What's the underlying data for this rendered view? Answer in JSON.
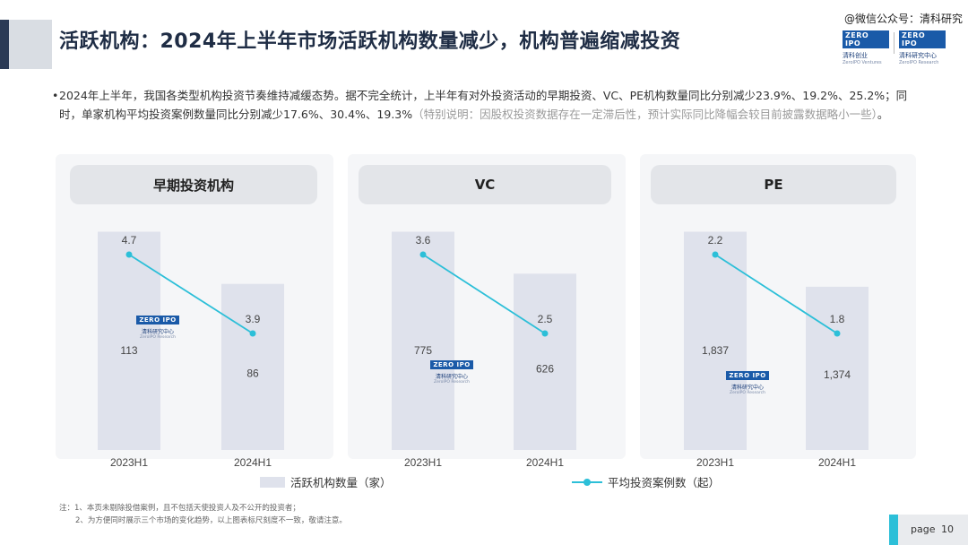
{
  "header": {
    "title": "活跃机构：2024年上半年市场活跃机构数量减少，机构普遍缩减投资",
    "source": "@微信公众号：清科研究",
    "logos": [
      {
        "tag": "ZERO IPO",
        "sub": "清科创业",
        "en": "ZeroIPO Ventures"
      },
      {
        "tag": "ZERO IPO",
        "sub": "清科研究中心",
        "en": "ZeroIPO Research"
      }
    ]
  },
  "summary": {
    "bullet": "•",
    "text": "2024年上半年，我国各类型机构投资节奏维持减缓态势。据不完全统计，上半年有对外投资活动的早期投资、VC、PE机构数量同比分别减少23.9%、19.2%、25.2%；同时，单家机构平均投资案例数量同比分别减少17.6%、30.4%、19.3%",
    "note": "（特别说明：因股权投资数据存在一定滞后性，预计实际同比降幅会较目前披露数据略小一些）",
    "end": "。"
  },
  "watermark": {
    "tag": "ZERO IPO",
    "sub": "清科研究中心",
    "en": "ZeroIPO Research"
  },
  "chart_data": [
    {
      "type": "bar",
      "title": "早期投资机构",
      "categories": [
        "2023H1",
        "2024H1"
      ],
      "series": [
        {
          "name": "活跃机构数量（家）",
          "type": "bar",
          "values": [
            113,
            86
          ],
          "labels": [
            "113",
            "86"
          ]
        },
        {
          "name": "平均投资案例数（起）",
          "type": "line",
          "values": [
            4.7,
            3.9
          ],
          "labels": [
            "4.7",
            "3.9"
          ]
        }
      ]
    },
    {
      "type": "bar",
      "title": "VC",
      "categories": [
        "2023H1",
        "2024H1"
      ],
      "series": [
        {
          "name": "活跃机构数量（家）",
          "type": "bar",
          "values": [
            775,
            626
          ],
          "labels": [
            "775",
            "626"
          ]
        },
        {
          "name": "平均投资案例数（起）",
          "type": "line",
          "values": [
            3.6,
            2.5
          ],
          "labels": [
            "3.6",
            "2.5"
          ]
        }
      ]
    },
    {
      "type": "bar",
      "title": "PE",
      "categories": [
        "2023H1",
        "2024H1"
      ],
      "series": [
        {
          "name": "活跃机构数量（家）",
          "type": "bar",
          "values": [
            1837,
            1374
          ],
          "labels": [
            "1,837",
            "1,374"
          ]
        },
        {
          "name": "平均投资案例数（起）",
          "type": "line",
          "values": [
            2.2,
            1.8
          ],
          "labels": [
            "2.2",
            "1.8"
          ]
        }
      ]
    }
  ],
  "legend": {
    "bar_label": "活跃机构数量（家）",
    "line_label": "平均投资案例数（起）"
  },
  "colors": {
    "bar": "#dfe2ec",
    "line": "#2cbfd8",
    "title": "#1f2d45"
  },
  "footnotes": [
    "注：1、本页未剔除投借案例，且不包括天使投资人及不公开的投资者；",
    "2、为方便同时展示三个市场的变化趋势，以上图表标尺刻度不一致，敬请注意。"
  ],
  "page": {
    "label": "page",
    "number": "10"
  }
}
